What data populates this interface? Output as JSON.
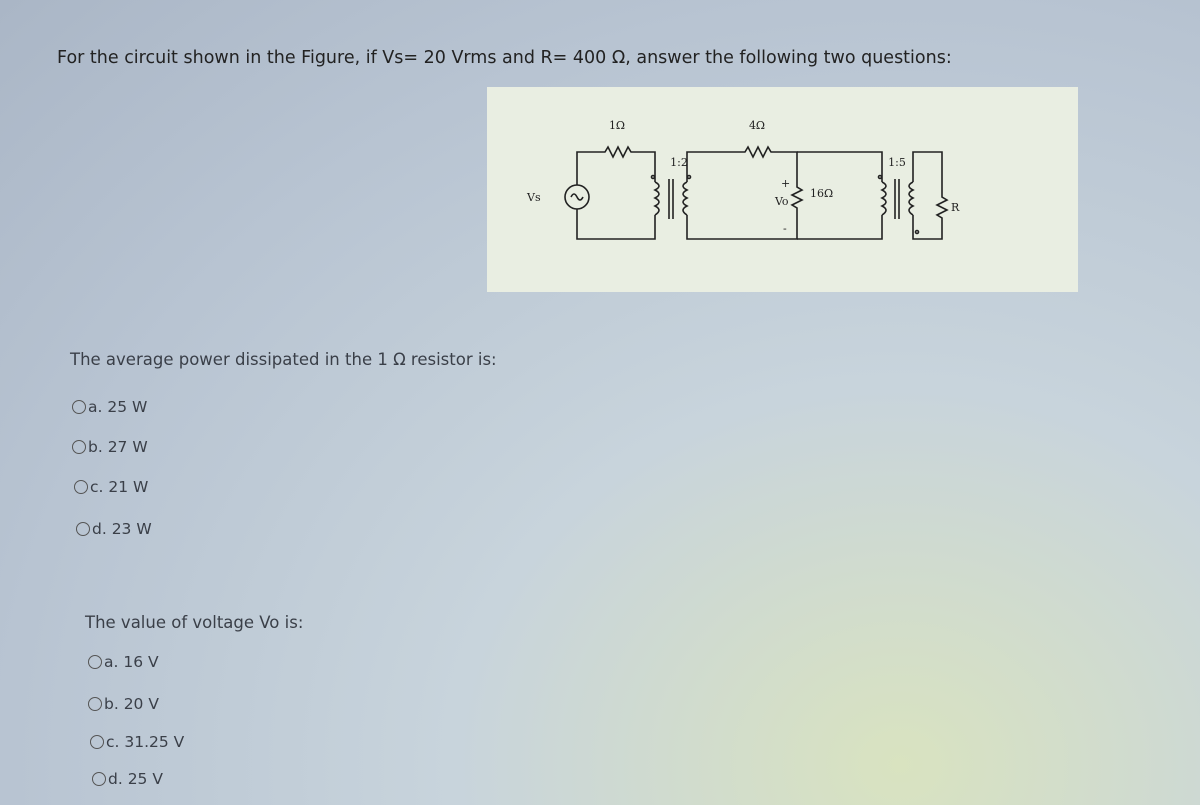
{
  "intro": "For the circuit shown in the Figure, if Vs= 20 Vrms and R= 400 Ω, answer the following two questions:",
  "figure": {
    "labels": {
      "r1": "1Ω",
      "r4": "4Ω",
      "t1": "1:2",
      "t2": "1:5",
      "vs": "Vs",
      "vo": "Vo",
      "r16": "16Ω",
      "r": "R",
      "plus": "+",
      "minus": "-"
    }
  },
  "questions": [
    {
      "prompt": "The average power dissipated in the 1 Ω resistor is:",
      "options": [
        "a. 25 W",
        "b. 27 W",
        "c. 21 W",
        "d. 23 W"
      ]
    },
    {
      "prompt": "The value of voltage Vo is:",
      "options": [
        "a. 16 V",
        "b. 20 V",
        "c. 31.25 V",
        "d. 25 V"
      ]
    }
  ]
}
